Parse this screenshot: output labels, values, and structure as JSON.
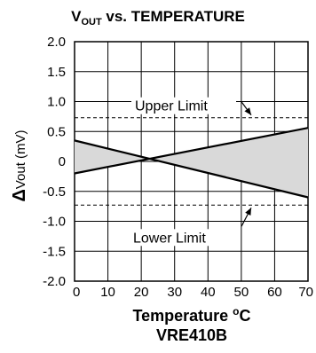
{
  "chart_data": {
    "type": "line",
    "title_main": "V",
    "title_sub": "OUT",
    "title_rest": " vs. TEMPERATURE",
    "xlabel_main": "Temperature ",
    "xlabel_sup": "o",
    "xlabel_unit": "C",
    "subtitle": "VRE410B",
    "ylabel_delta": "Δ",
    "ylabel_rest": "Vout  (mV)",
    "xlim": [
      0,
      70
    ],
    "ylim": [
      -2.0,
      2.0
    ],
    "x_ticks": [
      0,
      10,
      20,
      30,
      40,
      50,
      60,
      70
    ],
    "x_tick_labels": [
      "0",
      "10",
      "20",
      "30",
      "40",
      "50",
      "60",
      "70"
    ],
    "y_ticks": [
      2.0,
      1.5,
      1.0,
      0.5,
      0,
      -0.5,
      -1.0,
      -1.5,
      -2.0
    ],
    "y_tick_labels": [
      "2.0",
      "1.5",
      "1.0",
      "0.5",
      "0",
      "-0.5",
      "-1.0",
      "-1.5",
      "-2.0"
    ],
    "grid": true,
    "series": [
      {
        "x": [
          0,
          70
        ],
        "y": [
          0.35,
          -0.6
        ]
      },
      {
        "x": [
          0,
          70
        ],
        "y": [
          -0.2,
          0.56
        ]
      }
    ],
    "limits": [
      {
        "label": "Upper Limit",
        "y": 0.73
      },
      {
        "label": "Lower Limit",
        "y": -0.73
      }
    ],
    "shading": "between-series"
  }
}
